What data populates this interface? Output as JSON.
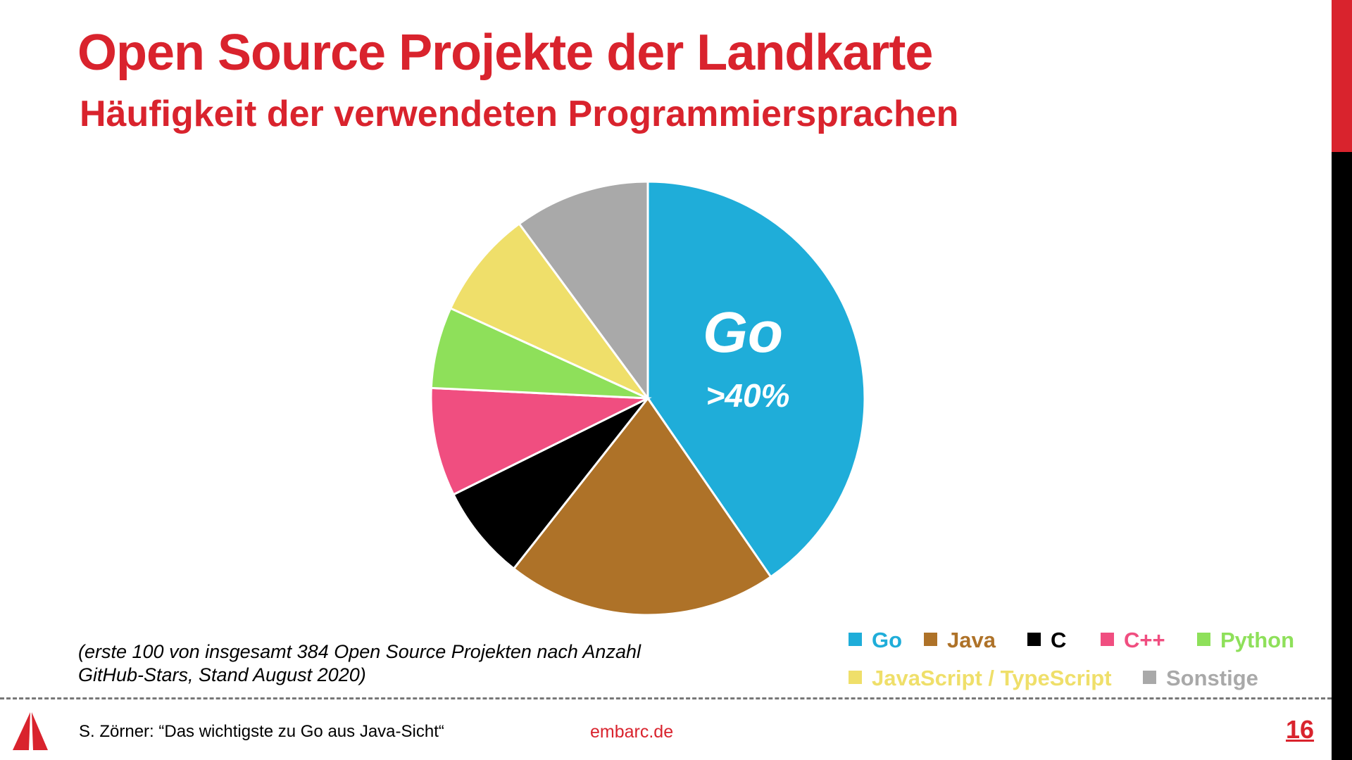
{
  "slide": {
    "title": "Open Source Projekte der Landkarte",
    "subtitle": "Häufigkeit der verwendeten Programmiersprachen",
    "annotation_line1": "(erste 100 von insgesamt 384 Open Source Projekten nach Anzahl",
    "annotation_line2": "GitHub-Stars, Stand August 2020)",
    "footer_author": "S. Zörner: “Das wichtigste zu Go aus Java-Sicht“",
    "footer_site": "embarc.de",
    "page_number": "16",
    "accent_color": "#d9232d",
    "logo_icon": "sail-logo-icon"
  },
  "chart_data": {
    "type": "pie",
    "title": "",
    "annotation_main": "Go",
    "annotation_value": ">40%",
    "legend_position": "bottom-right",
    "slices": [
      {
        "label": "Go",
        "value": 40,
        "color": "#1fadd9"
      },
      {
        "label": "Java",
        "value": 20,
        "color": "#ae7228"
      },
      {
        "label": "C",
        "value": 7,
        "color": "#000000"
      },
      {
        "label": "C++",
        "value": 8,
        "color": "#f04e80"
      },
      {
        "label": "Python",
        "value": 6,
        "color": "#8ee05a"
      },
      {
        "label": "JavaScript / TypeScript",
        "value": 8,
        "color": "#efdf6a"
      },
      {
        "label": "Sonstige",
        "value": 10,
        "color": "#a9a9a9"
      }
    ]
  }
}
